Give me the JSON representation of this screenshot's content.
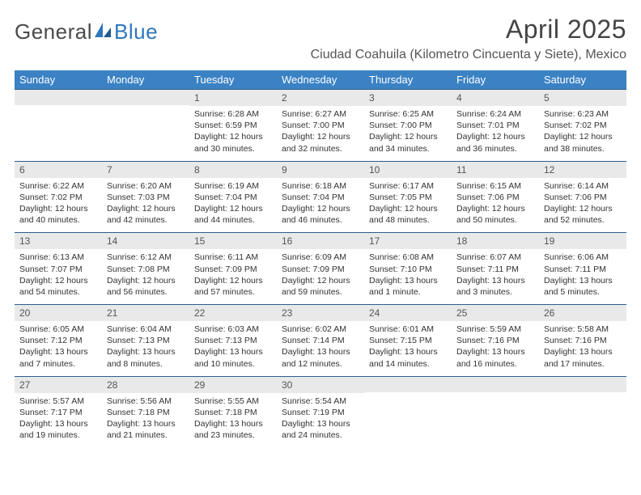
{
  "brand": {
    "part1": "General",
    "part2": "Blue"
  },
  "title": "April 2025",
  "location": "Ciudad Coahuila (Kilometro Cincuenta y Siete), Mexico",
  "colors": {
    "header_bg": "#3b82c4",
    "header_text": "#ffffff",
    "daynum_bg": "#e9e9e9",
    "rule": "#2c5f91",
    "brand_blue": "#2f77bb",
    "text": "#333333"
  },
  "dow": [
    "Sunday",
    "Monday",
    "Tuesday",
    "Wednesday",
    "Thursday",
    "Friday",
    "Saturday"
  ],
  "weeks": [
    [
      null,
      null,
      {
        "n": "1",
        "sr": "Sunrise: 6:28 AM",
        "ss": "Sunset: 6:59 PM",
        "d1": "Daylight: 12 hours",
        "d2": "and 30 minutes."
      },
      {
        "n": "2",
        "sr": "Sunrise: 6:27 AM",
        "ss": "Sunset: 7:00 PM",
        "d1": "Daylight: 12 hours",
        "d2": "and 32 minutes."
      },
      {
        "n": "3",
        "sr": "Sunrise: 6:25 AM",
        "ss": "Sunset: 7:00 PM",
        "d1": "Daylight: 12 hours",
        "d2": "and 34 minutes."
      },
      {
        "n": "4",
        "sr": "Sunrise: 6:24 AM",
        "ss": "Sunset: 7:01 PM",
        "d1": "Daylight: 12 hours",
        "d2": "and 36 minutes."
      },
      {
        "n": "5",
        "sr": "Sunrise: 6:23 AM",
        "ss": "Sunset: 7:02 PM",
        "d1": "Daylight: 12 hours",
        "d2": "and 38 minutes."
      }
    ],
    [
      {
        "n": "6",
        "sr": "Sunrise: 6:22 AM",
        "ss": "Sunset: 7:02 PM",
        "d1": "Daylight: 12 hours",
        "d2": "and 40 minutes."
      },
      {
        "n": "7",
        "sr": "Sunrise: 6:20 AM",
        "ss": "Sunset: 7:03 PM",
        "d1": "Daylight: 12 hours",
        "d2": "and 42 minutes."
      },
      {
        "n": "8",
        "sr": "Sunrise: 6:19 AM",
        "ss": "Sunset: 7:04 PM",
        "d1": "Daylight: 12 hours",
        "d2": "and 44 minutes."
      },
      {
        "n": "9",
        "sr": "Sunrise: 6:18 AM",
        "ss": "Sunset: 7:04 PM",
        "d1": "Daylight: 12 hours",
        "d2": "and 46 minutes."
      },
      {
        "n": "10",
        "sr": "Sunrise: 6:17 AM",
        "ss": "Sunset: 7:05 PM",
        "d1": "Daylight: 12 hours",
        "d2": "and 48 minutes."
      },
      {
        "n": "11",
        "sr": "Sunrise: 6:15 AM",
        "ss": "Sunset: 7:06 PM",
        "d1": "Daylight: 12 hours",
        "d2": "and 50 minutes."
      },
      {
        "n": "12",
        "sr": "Sunrise: 6:14 AM",
        "ss": "Sunset: 7:06 PM",
        "d1": "Daylight: 12 hours",
        "d2": "and 52 minutes."
      }
    ],
    [
      {
        "n": "13",
        "sr": "Sunrise: 6:13 AM",
        "ss": "Sunset: 7:07 PM",
        "d1": "Daylight: 12 hours",
        "d2": "and 54 minutes."
      },
      {
        "n": "14",
        "sr": "Sunrise: 6:12 AM",
        "ss": "Sunset: 7:08 PM",
        "d1": "Daylight: 12 hours",
        "d2": "and 56 minutes."
      },
      {
        "n": "15",
        "sr": "Sunrise: 6:11 AM",
        "ss": "Sunset: 7:09 PM",
        "d1": "Daylight: 12 hours",
        "d2": "and 57 minutes."
      },
      {
        "n": "16",
        "sr": "Sunrise: 6:09 AM",
        "ss": "Sunset: 7:09 PM",
        "d1": "Daylight: 12 hours",
        "d2": "and 59 minutes."
      },
      {
        "n": "17",
        "sr": "Sunrise: 6:08 AM",
        "ss": "Sunset: 7:10 PM",
        "d1": "Daylight: 13 hours",
        "d2": "and 1 minute."
      },
      {
        "n": "18",
        "sr": "Sunrise: 6:07 AM",
        "ss": "Sunset: 7:11 PM",
        "d1": "Daylight: 13 hours",
        "d2": "and 3 minutes."
      },
      {
        "n": "19",
        "sr": "Sunrise: 6:06 AM",
        "ss": "Sunset: 7:11 PM",
        "d1": "Daylight: 13 hours",
        "d2": "and 5 minutes."
      }
    ],
    [
      {
        "n": "20",
        "sr": "Sunrise: 6:05 AM",
        "ss": "Sunset: 7:12 PM",
        "d1": "Daylight: 13 hours",
        "d2": "and 7 minutes."
      },
      {
        "n": "21",
        "sr": "Sunrise: 6:04 AM",
        "ss": "Sunset: 7:13 PM",
        "d1": "Daylight: 13 hours",
        "d2": "and 8 minutes."
      },
      {
        "n": "22",
        "sr": "Sunrise: 6:03 AM",
        "ss": "Sunset: 7:13 PM",
        "d1": "Daylight: 13 hours",
        "d2": "and 10 minutes."
      },
      {
        "n": "23",
        "sr": "Sunrise: 6:02 AM",
        "ss": "Sunset: 7:14 PM",
        "d1": "Daylight: 13 hours",
        "d2": "and 12 minutes."
      },
      {
        "n": "24",
        "sr": "Sunrise: 6:01 AM",
        "ss": "Sunset: 7:15 PM",
        "d1": "Daylight: 13 hours",
        "d2": "and 14 minutes."
      },
      {
        "n": "25",
        "sr": "Sunrise: 5:59 AM",
        "ss": "Sunset: 7:16 PM",
        "d1": "Daylight: 13 hours",
        "d2": "and 16 minutes."
      },
      {
        "n": "26",
        "sr": "Sunrise: 5:58 AM",
        "ss": "Sunset: 7:16 PM",
        "d1": "Daylight: 13 hours",
        "d2": "and 17 minutes."
      }
    ],
    [
      {
        "n": "27",
        "sr": "Sunrise: 5:57 AM",
        "ss": "Sunset: 7:17 PM",
        "d1": "Daylight: 13 hours",
        "d2": "and 19 minutes."
      },
      {
        "n": "28",
        "sr": "Sunrise: 5:56 AM",
        "ss": "Sunset: 7:18 PM",
        "d1": "Daylight: 13 hours",
        "d2": "and 21 minutes."
      },
      {
        "n": "29",
        "sr": "Sunrise: 5:55 AM",
        "ss": "Sunset: 7:18 PM",
        "d1": "Daylight: 13 hours",
        "d2": "and 23 minutes."
      },
      {
        "n": "30",
        "sr": "Sunrise: 5:54 AM",
        "ss": "Sunset: 7:19 PM",
        "d1": "Daylight: 13 hours",
        "d2": "and 24 minutes."
      },
      null,
      null,
      null
    ]
  ]
}
